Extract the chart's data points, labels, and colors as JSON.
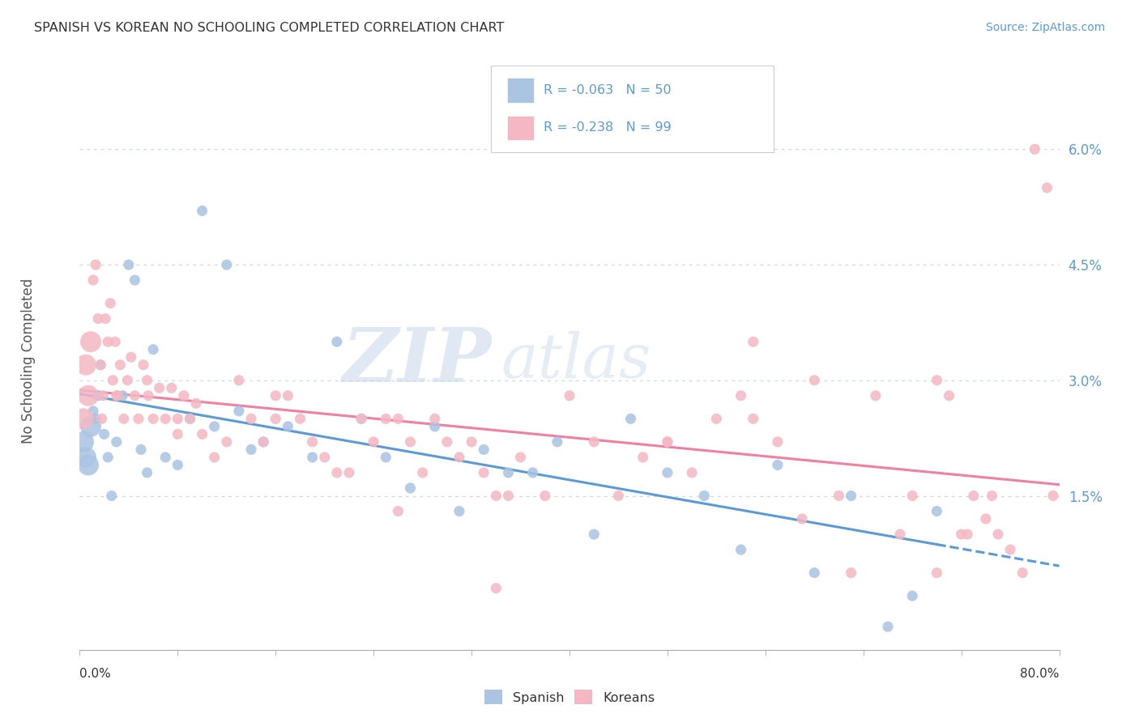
{
  "title": "SPANISH VS KOREAN NO SCHOOLING COMPLETED CORRELATION CHART",
  "source": "Source: ZipAtlas.com",
  "ylabel": "No Schooling Completed",
  "xmin": 0.0,
  "xmax": 80.0,
  "ymin": -0.5,
  "ymax": 7.0,
  "yticks": [
    1.5,
    3.0,
    4.5,
    6.0
  ],
  "ytick_labels": [
    "1.5%",
    "3.0%",
    "4.5%",
    "6.0%"
  ],
  "spanish_color": "#aac4e2",
  "korean_color": "#f4b8c4",
  "trend_spanish_color": "#5b9bd5",
  "trend_korean_color": "#f080a0",
  "spanish_R": -0.063,
  "spanish_N": 50,
  "korean_R": -0.238,
  "korean_N": 99,
  "legend_label_spanish": "Spanish",
  "legend_label_korean": "Koreans",
  "watermark_zip": "ZIP",
  "watermark_atlas": "atlas",
  "spanish_x": [
    0.3,
    0.5,
    0.7,
    0.9,
    1.1,
    1.3,
    1.5,
    1.7,
    2.0,
    2.3,
    2.6,
    3.0,
    3.5,
    4.0,
    4.5,
    5.0,
    5.5,
    6.0,
    7.0,
    8.0,
    9.0,
    10.0,
    11.0,
    12.0,
    13.0,
    14.0,
    15.0,
    17.0,
    19.0,
    21.0,
    23.0,
    25.0,
    27.0,
    29.0,
    31.0,
    33.0,
    35.0,
    37.0,
    39.0,
    42.0,
    45.0,
    48.0,
    51.0,
    54.0,
    57.0,
    60.0,
    63.0,
    66.0,
    68.0,
    70.0
  ],
  "spanish_y": [
    2.2,
    2.0,
    1.9,
    2.4,
    2.6,
    2.5,
    2.8,
    3.2,
    2.3,
    2.0,
    1.5,
    2.2,
    2.8,
    4.5,
    4.3,
    2.1,
    1.8,
    3.4,
    2.0,
    1.9,
    2.5,
    5.2,
    2.4,
    4.5,
    2.6,
    2.1,
    2.2,
    2.4,
    2.0,
    3.5,
    2.5,
    2.0,
    1.6,
    2.4,
    1.3,
    2.1,
    1.8,
    1.8,
    2.2,
    1.0,
    2.5,
    1.8,
    1.5,
    0.8,
    1.9,
    0.5,
    1.5,
    -0.2,
    0.2,
    1.3
  ],
  "korean_x": [
    0.3,
    0.5,
    0.7,
    0.9,
    1.1,
    1.3,
    1.5,
    1.7,
    1.9,
    2.1,
    2.3,
    2.5,
    2.7,
    2.9,
    3.1,
    3.3,
    3.6,
    3.9,
    4.2,
    4.5,
    4.8,
    5.2,
    5.6,
    6.0,
    6.5,
    7.0,
    7.5,
    8.0,
    8.5,
    9.0,
    9.5,
    10.0,
    11.0,
    12.0,
    13.0,
    14.0,
    15.0,
    16.0,
    17.0,
    18.0,
    19.0,
    20.0,
    21.0,
    22.0,
    23.0,
    24.0,
    25.0,
    26.0,
    27.0,
    28.0,
    29.0,
    30.0,
    31.0,
    32.0,
    33.0,
    34.0,
    35.0,
    36.0,
    38.0,
    40.0,
    42.0,
    44.0,
    46.0,
    48.0,
    50.0,
    52.0,
    54.0,
    55.0,
    57.0,
    59.0,
    60.0,
    62.0,
    63.0,
    65.0,
    67.0,
    68.0,
    70.0,
    71.0,
    72.0,
    73.0,
    74.0,
    75.0,
    76.0,
    77.0,
    78.0,
    79.0,
    79.5,
    55.0,
    48.0,
    70.0,
    72.5,
    74.5,
    34.0,
    26.0,
    16.0,
    8.0,
    5.5,
    3.0,
    1.8
  ],
  "korean_y": [
    2.5,
    3.2,
    2.8,
    3.5,
    4.3,
    4.5,
    3.8,
    3.2,
    2.8,
    3.8,
    3.5,
    4.0,
    3.0,
    3.5,
    2.8,
    3.2,
    2.5,
    3.0,
    3.3,
    2.8,
    2.5,
    3.2,
    2.8,
    2.5,
    2.9,
    2.5,
    2.9,
    2.3,
    2.8,
    2.5,
    2.7,
    2.3,
    2.0,
    2.2,
    3.0,
    2.5,
    2.2,
    2.5,
    2.8,
    2.5,
    2.2,
    2.0,
    1.8,
    1.8,
    2.5,
    2.2,
    2.5,
    2.5,
    2.2,
    1.8,
    2.5,
    2.2,
    2.0,
    2.2,
    1.8,
    1.5,
    1.5,
    2.0,
    1.5,
    2.8,
    2.2,
    1.5,
    2.0,
    2.2,
    1.8,
    2.5,
    2.8,
    2.5,
    2.2,
    1.2,
    3.0,
    1.5,
    0.5,
    2.8,
    1.0,
    1.5,
    3.0,
    2.8,
    1.0,
    1.5,
    1.2,
    1.0,
    0.8,
    0.5,
    6.0,
    5.5,
    1.5,
    3.5,
    2.2,
    0.5,
    1.0,
    1.5,
    0.3,
    1.3,
    2.8,
    2.5,
    3.0,
    2.8,
    2.5
  ]
}
